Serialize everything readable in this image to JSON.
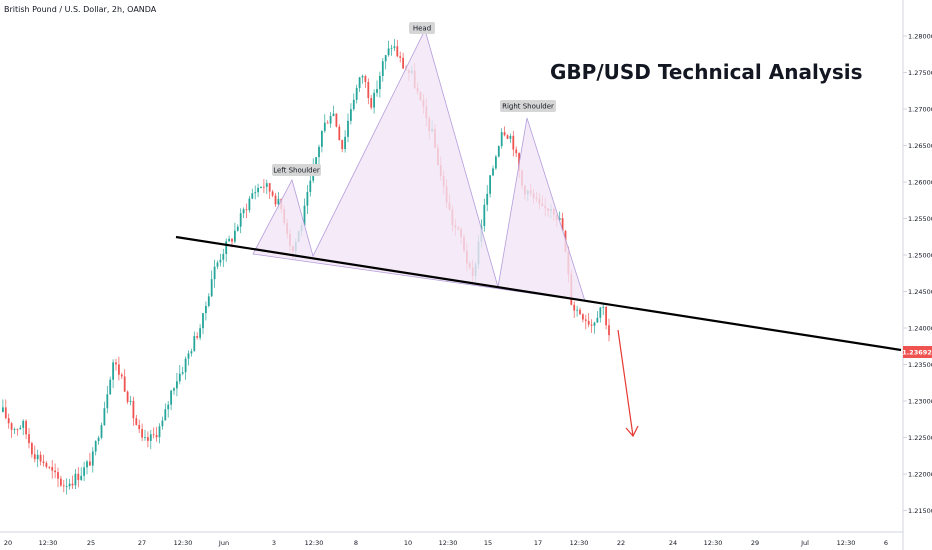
{
  "header": {
    "symbol": "British Pound / U.S. Dollar, 2h, OANDA",
    "analysis_title": "GBP/USD Technical Analysis"
  },
  "colors": {
    "up": "#26a69a",
    "down": "#ef5350",
    "pattern_fill": "#f3e5f5",
    "pattern_stroke": "#b39ddb",
    "neckline": "#000000",
    "arrow": "#e53935",
    "price_tag": "#ef5350",
    "axis_line": "#d1d4dc"
  },
  "chart_data": {
    "type": "candlestick",
    "title": "GBP/USD Technical Analysis",
    "symbol": "British Pound / U.S. Dollar, 2h, OANDA",
    "y_axis": {
      "ticks": [
        "1.28000",
        "1.27500",
        "1.27000",
        "1.26500",
        "1.26000",
        "1.25500",
        "1.25000",
        "1.24500",
        "1.24000",
        "1.23500",
        "1.23000",
        "1.22500",
        "1.22000",
        "1.21500"
      ],
      "range": [
        1.2135,
        1.284
      ]
    },
    "x_axis": {
      "ticks": [
        "20",
        "12:30",
        "25",
        "27",
        "12:30",
        "Jun",
        "3",
        "12:30",
        "8",
        "10",
        "12:30",
        "15",
        "17",
        "12:30",
        "22",
        "24",
        "12:30",
        "29",
        "Jul",
        "12:30",
        "6"
      ]
    },
    "current_price": "1.23692",
    "close_path": [
      1.2285,
      1.2262,
      1.2268,
      1.223,
      1.2218,
      1.22,
      1.2185,
      1.2192,
      1.2204,
      1.2223,
      1.2282,
      1.2355,
      1.233,
      1.2282,
      1.2242,
      1.225,
      1.227,
      1.232,
      1.2345,
      1.2378,
      1.241,
      1.2475,
      1.2505,
      1.2525,
      1.2557,
      1.2585,
      1.2598,
      1.2585,
      1.256,
      1.2504,
      1.2548,
      1.261,
      1.2672,
      1.27,
      1.2648,
      1.2712,
      1.2748,
      1.2705,
      1.276,
      1.279,
      1.276,
      1.2745,
      1.27,
      1.2665,
      1.26,
      1.2545,
      1.252,
      1.2462,
      1.255,
      1.2615,
      1.2675,
      1.266,
      1.2595,
      1.258,
      1.256,
      1.2568,
      1.254,
      1.243,
      1.242,
      1.2405,
      1.2435,
      1.2375
    ],
    "patterns": {
      "head_and_shoulders": {
        "left_shoulder_label": "Left Shoulder",
        "head_label": "Head",
        "right_shoulder_label": "Right Shoulder",
        "neckline_start": {
          "x": "27, 12:30",
          "y": 1.2524
        },
        "neckline_end": {
          "x": "Jul, 12:30",
          "y": 1.2372
        }
      }
    },
    "annotations": [
      "Projected decline arrow after neckline break"
    ],
    "grid": false,
    "legend": "none"
  }
}
